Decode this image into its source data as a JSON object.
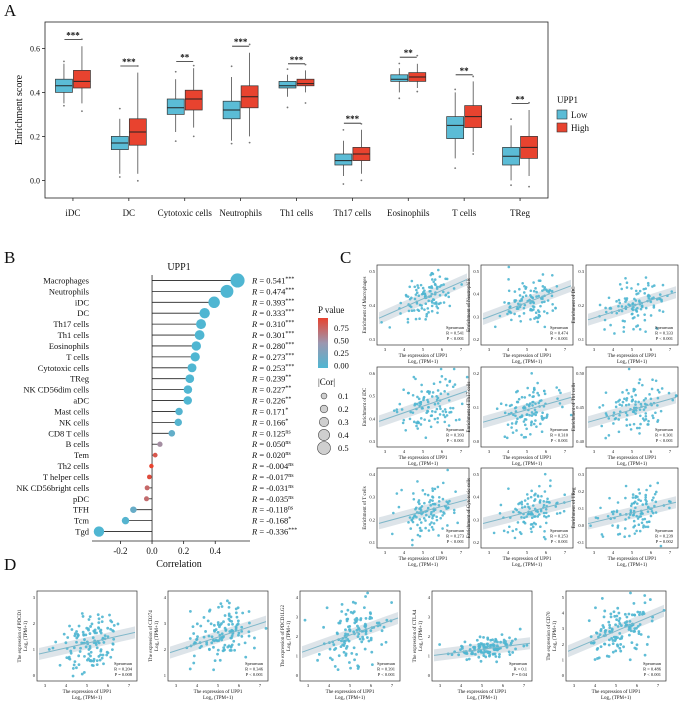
{
  "colors": {
    "low": "#5bbcd6",
    "high": "#e8432f",
    "dot": "#4fb6d2",
    "grad_high": "#e8432f",
    "grad_mid": "#9b97b0",
    "grad_low": "#4fb6d2"
  },
  "panel_labels": [
    "A",
    "B",
    "C",
    "D"
  ],
  "chart_data": [
    {
      "type": "box",
      "panel": "A",
      "ylabel": "Enrichment score",
      "ylim": [
        -0.08,
        0.72
      ],
      "yticks": [
        "0.0",
        "0.2",
        "0.4",
        "0.6"
      ],
      "categories": [
        "iDC",
        "DC",
        "Cytotoxic cells",
        "Neutrophils",
        "Th1 cells",
        "Th17 cells",
        "Eosinophils",
        "T cells",
        "TReg"
      ],
      "significance": [
        "***",
        "***",
        "**",
        "***",
        "***",
        "***",
        "**",
        "**",
        "**"
      ],
      "legend": {
        "title": "UPP1",
        "items": [
          "Low",
          "High"
        ]
      },
      "series": [
        {
          "name": "Low",
          "boxes": [
            [
              0.35,
              0.4,
              0.43,
              0.46,
              0.53
            ],
            [
              0.03,
              0.14,
              0.17,
              0.2,
              0.28
            ],
            [
              0.22,
              0.3,
              0.33,
              0.37,
              0.46
            ],
            [
              0.18,
              0.28,
              0.32,
              0.36,
              0.47
            ],
            [
              0.38,
              0.42,
              0.43,
              0.45,
              0.48
            ],
            [
              0.02,
              0.07,
              0.09,
              0.12,
              0.18
            ],
            [
              0.4,
              0.45,
              0.46,
              0.48,
              0.51
            ],
            [
              0.1,
              0.19,
              0.25,
              0.29,
              0.4
            ],
            [
              0.0,
              0.07,
              0.11,
              0.15,
              0.25
            ]
          ]
        },
        {
          "name": "High",
          "boxes": [
            [
              0.35,
              0.42,
              0.45,
              0.5,
              0.61
            ],
            [
              0.03,
              0.16,
              0.22,
              0.28,
              0.49
            ],
            [
              0.24,
              0.32,
              0.37,
              0.41,
              0.51
            ],
            [
              0.2,
              0.33,
              0.38,
              0.43,
              0.58
            ],
            [
              0.4,
              0.43,
              0.44,
              0.46,
              0.5
            ],
            [
              0.03,
              0.09,
              0.12,
              0.15,
              0.23
            ],
            [
              0.42,
              0.45,
              0.47,
              0.49,
              0.53
            ],
            [
              0.13,
              0.24,
              0.29,
              0.34,
              0.45
            ],
            [
              0.02,
              0.1,
              0.15,
              0.2,
              0.32
            ]
          ]
        }
      ]
    },
    {
      "type": "lollipop",
      "panel": "B",
      "title": "UPP1",
      "xlabel": "Correlation",
      "xlim": [
        -0.38,
        0.62
      ],
      "xticks": [
        "-0.2",
        "0.0",
        "0.2",
        "0.4"
      ],
      "xtick_values": [
        -0.2,
        0.0,
        0.2,
        0.4
      ],
      "cells": [
        "Macrophages",
        "Neutrophils",
        "iDC",
        "DC",
        "Th17 cells",
        "Th1 cells",
        "Eosinophils",
        "T cells",
        "Cytotoxic cells",
        "TReg",
        "NK CD56dim cells",
        "aDC",
        "Mast cells",
        "NK cells",
        "CD8 T cells",
        "B cells",
        "Tem",
        "Th2 cells",
        "T helper cells",
        "NK CD56bright cells",
        "pDC",
        "TFH",
        "Tcm",
        "Tgd"
      ],
      "r": [
        0.541,
        0.474,
        0.393,
        0.333,
        0.31,
        0.301,
        0.28,
        0.273,
        0.253,
        0.239,
        0.227,
        0.226,
        0.171,
        0.166,
        0.125,
        0.05,
        0.02,
        -0.004,
        -0.017,
        -0.031,
        -0.035,
        -0.118,
        -0.168,
        -0.336
      ],
      "r_text": [
        "0.541",
        "0.474",
        "0.393",
        "0.333",
        "0.310",
        "0.301",
        "0.280",
        "0.273",
        "0.253",
        "0.239",
        "0.227",
        "0.226",
        "0.171",
        "0.166",
        "0.125",
        "0.050",
        "0.020",
        "-0.004",
        "-0.017",
        "-0.031",
        "-0.035",
        "-0.118",
        "-0.168",
        "-0.336"
      ],
      "sig": [
        "***",
        "***",
        "***",
        "***",
        "***",
        "***",
        "***",
        "***",
        "***",
        "**",
        "**",
        "**",
        "*",
        "*",
        "ns",
        "ns",
        "ns",
        "ns",
        "ns",
        "ns",
        "ns",
        "ns",
        "*",
        "***"
      ],
      "p": [
        0.0,
        0.0,
        0.0,
        0.0,
        0.0,
        0.0,
        0.0,
        0.0,
        0.0,
        0.002,
        0.004,
        0.004,
        0.03,
        0.035,
        0.12,
        0.5,
        0.8,
        0.95,
        0.85,
        0.7,
        0.68,
        0.14,
        0.034,
        0.0
      ],
      "legend_p": {
        "title": "P value",
        "ticks": [
          "0.75",
          "0.50",
          "0.25",
          "0.00"
        ]
      },
      "legend_cor": {
        "title": "|Cor|",
        "values": [
          "0.1",
          "0.2",
          "0.3",
          "0.4",
          "0.5"
        ]
      },
      "r_prefix": "R ="
    },
    {
      "type": "scatter-grid",
      "panel": "C",
      "xlabel": "The expression  of UPP1",
      "xlabel2": "Log₂ (TPM+1)",
      "xticks": [
        "3",
        "4",
        "5",
        "6",
        "7"
      ],
      "panels": [
        {
          "ylabel": "Enrichment of Macrophages",
          "stat": [
            "Spearman",
            "R = 0.541",
            "P < 0.001"
          ],
          "yticks": [
            "0.3",
            "0.4",
            "0.5"
          ],
          "slope": 0.55
        },
        {
          "ylabel": "Enrichment of Neutrophils",
          "stat": [
            "Spearman",
            "R = 0.474",
            "P < 0.001"
          ],
          "yticks": [
            "0.2",
            "0.3",
            "0.4",
            "0.5"
          ],
          "slope": 0.45
        },
        {
          "ylabel": "Enrichment of DC",
          "stat": [
            "Spearman",
            "R = 0.333",
            "P < 0.001"
          ],
          "yticks": [
            "0.1",
            "0.2",
            "0.3"
          ],
          "slope": 0.35
        },
        {
          "ylabel": "Enrichment of iDC",
          "stat": [
            "Spearman",
            "R = 0.393",
            "P < 0.001"
          ],
          "yticks": [
            "0.3",
            "0.4",
            "0.5",
            "0.6"
          ],
          "slope": 0.4
        },
        {
          "ylabel": "Enrichment of Th17 cells",
          "stat": [
            "Spearman",
            "R = 0.310",
            "P < 0.001"
          ],
          "yticks": [
            "0.0",
            "0.1",
            "0.2"
          ],
          "slope": 0.3
        },
        {
          "ylabel": "Enrichment of Th1 cells",
          "stat": [
            "Spearman",
            "R = 0.301",
            "P < 0.001"
          ],
          "yticks": [
            "0.40",
            "0.45",
            "0.50"
          ],
          "slope": 0.3
        },
        {
          "ylabel": "Enrichment of T cells",
          "stat": [
            "Spearman",
            "R = 0.273",
            "P < 0.001"
          ],
          "yticks": [
            "0.1",
            "0.2",
            "0.3",
            "0.4"
          ],
          "slope": 0.28
        },
        {
          "ylabel": "Enrichment of Cytotoxic cells",
          "stat": [
            "Spearman",
            "R = 0.253",
            "P < 0.001"
          ],
          "yticks": [
            "0.2",
            "0.3",
            "0.4",
            "0.5"
          ],
          "slope": 0.26
        },
        {
          "ylabel": "Enrichment of TReg",
          "stat": [
            "Spearman",
            "R = 0.239",
            "P = 0.002"
          ],
          "yticks": [
            "-0.1",
            "0.0",
            "0.1",
            "0.2",
            "0.3"
          ],
          "slope": 0.24
        }
      ]
    },
    {
      "type": "scatter-row",
      "panel": "D",
      "xlabel": "The expression  of UPP1",
      "xlabel2": "Log₂ (TPM+1)",
      "xticks": [
        "3",
        "4",
        "5",
        "6",
        "7"
      ],
      "panels": [
        {
          "ylabel": "The expression  of PDCD1",
          "ylabel2": "Log₂ (TPM+1)",
          "stat": [
            "Spearman",
            "R = 0.204",
            "P = 0.008"
          ],
          "yticks": [
            "0",
            "1",
            "2",
            "3"
          ],
          "slope": 0.2
        },
        {
          "ylabel": "The expression  of CD274",
          "ylabel2": "Log₂ (TPM+1)",
          "stat": [
            "Spearman",
            "R = 0.346",
            "P < 0.001"
          ],
          "yticks": [
            "1",
            "2",
            "3",
            "4"
          ],
          "slope": 0.35
        },
        {
          "ylabel": "The expression  of PDCD1LG2",
          "ylabel2": "Log₂ (TPM+1)",
          "stat": [
            "Spearman",
            "R = 0.391",
            "P < 0.001"
          ],
          "yticks": [
            "0",
            "1",
            "2",
            "3",
            "4"
          ],
          "slope": 0.4
        },
        {
          "ylabel": "The expression  of CTLA4",
          "ylabel2": "Log₂ (TPM+1)",
          "stat": [
            "Spearman",
            "R = 0.1",
            "P = 0.04"
          ],
          "yticks": [
            "0",
            "1",
            "2",
            "3",
            "4"
          ],
          "slope": 0.05
        },
        {
          "ylabel": "The expression  of CD70",
          "ylabel2": "Log₂ (TPM+1)",
          "stat": [
            "Spearman",
            "R = 0.486",
            "P < 0.001"
          ],
          "yticks": [
            "0",
            "1",
            "2",
            "3",
            "4",
            "5"
          ],
          "slope": 0.5
        }
      ]
    }
  ]
}
